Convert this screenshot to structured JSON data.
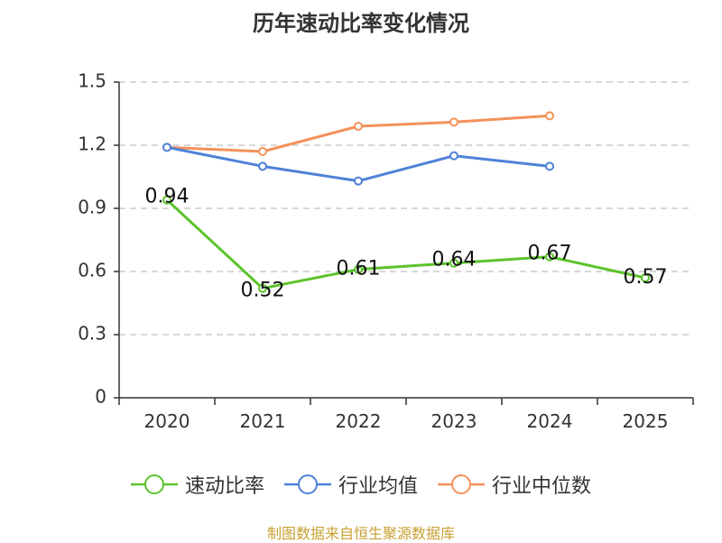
{
  "chart_data": {
    "type": "line",
    "title": "历年速动比率变化情况",
    "categories": [
      "2020",
      "2021",
      "2022",
      "2023",
      "2024",
      "2025"
    ],
    "ylim": [
      0,
      1.5
    ],
    "yticks": [
      "0",
      "0.3",
      "0.6",
      "0.9",
      "1.2",
      "1.5"
    ],
    "yticks_values": [
      0,
      0.3,
      0.6,
      0.9,
      1.2,
      1.5
    ],
    "grid": true,
    "legend_position": "bottom",
    "series": [
      {
        "name": "速动比率",
        "color": "#5bc32a",
        "values": [
          0.94,
          0.52,
          0.61,
          0.64,
          0.67,
          0.57
        ],
        "labels": [
          "0.94",
          "0.52",
          "0.61",
          "0.64",
          "0.67",
          "0.57"
        ]
      },
      {
        "name": "行业均值",
        "color": "#4f82d8",
        "values": [
          1.19,
          1.1,
          1.03,
          1.15,
          1.1,
          null
        ]
      },
      {
        "name": "行业中位数",
        "color": "#f4915a",
        "values": [
          1.19,
          1.17,
          1.29,
          1.31,
          1.34,
          null
        ]
      }
    ]
  },
  "footer": {
    "source": "制图数据来自恒生聚源数据库"
  }
}
